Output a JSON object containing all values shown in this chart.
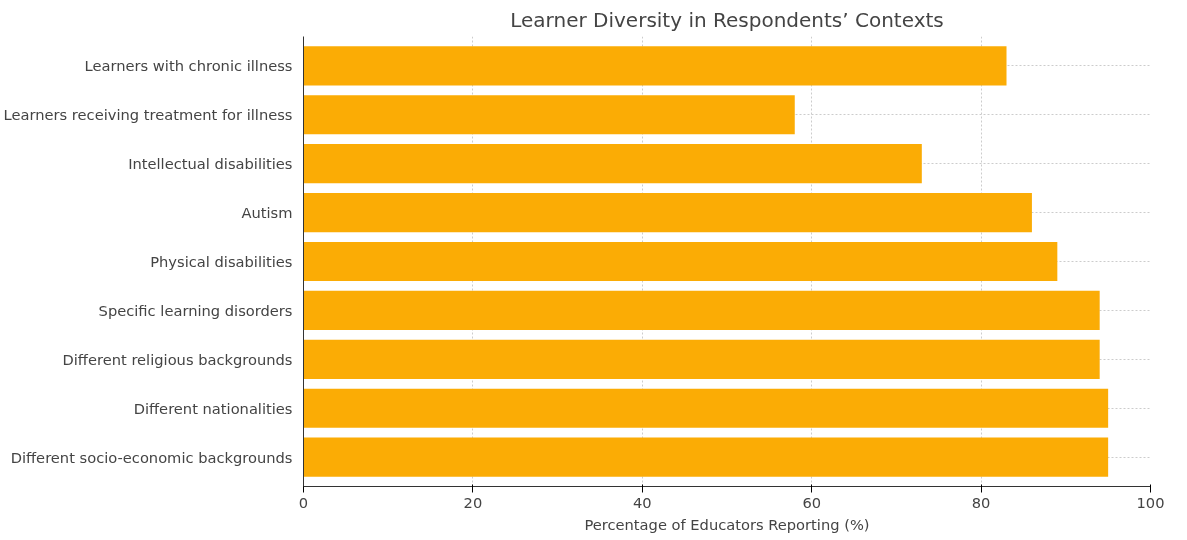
{
  "chart_data": {
    "type": "bar",
    "orientation": "horizontal",
    "title": "Learner Diversity in Respondents’ Contexts",
    "xlabel": "Percentage of Educators Reporting (%)",
    "categories": [
      "Learners with chronic illness",
      "Learners receiving treatment for illness",
      "Intellectual disabilities",
      "Autism",
      "Physical disabilities",
      "Specific learning disorders",
      "Different religious backgrounds",
      "Different nationalities",
      "Different socio-economic backgrounds"
    ],
    "values": [
      83,
      58,
      73,
      86,
      89,
      94,
      94,
      95,
      95
    ],
    "color": "#fbac05",
    "xlim": [
      0,
      100
    ],
    "xticks": [
      0,
      20,
      40,
      60,
      80,
      100
    ],
    "grid": true
  }
}
